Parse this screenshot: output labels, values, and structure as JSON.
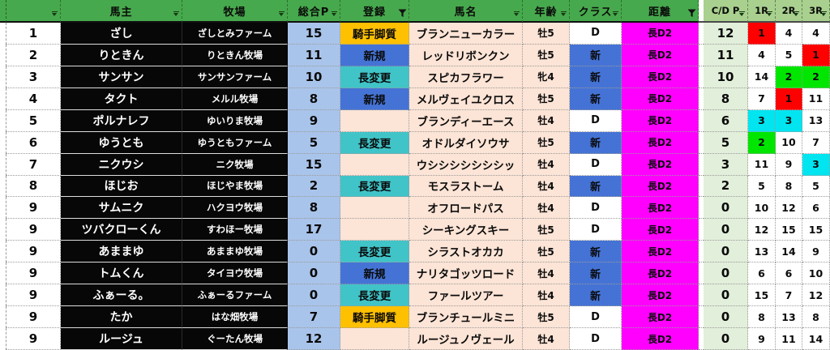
{
  "colors": {
    "header_green": "#47A94D",
    "header_light_green": "#A9D08E",
    "owner_cell_black": "#070707",
    "total_p_blue": "#A9C4EA",
    "cream": "#FCE4D6",
    "entry_gold": "#FFC000",
    "entry_blue": "#4573D5",
    "entry_teal": "#40C4C8",
    "distance_magenta": "#FF00FF",
    "cdp_light_green": "#E2EFDA",
    "rank_red": "#FF0000",
    "rank_green": "#00E600",
    "rank_cyan": "#00E5F0"
  },
  "sheet": {
    "columns": [
      {
        "label": "",
        "filter": "dropdown",
        "theme": "green",
        "name": "row-number"
      },
      {
        "label": "馬主",
        "filter": "dropdown",
        "theme": "green",
        "name": "owner"
      },
      {
        "label": "牧場",
        "filter": "dropdown",
        "theme": "green",
        "name": "farm"
      },
      {
        "label": "総合P",
        "filter": "dropdown",
        "theme": "green",
        "name": "total-p"
      },
      {
        "label": "登録",
        "filter": "funnel",
        "theme": "green",
        "name": "entry"
      },
      {
        "label": "馬名",
        "filter": "dropdown",
        "theme": "green",
        "name": "horse-name"
      },
      {
        "label": "年齢",
        "filter": "dropdown",
        "theme": "green",
        "name": "age"
      },
      {
        "label": "クラス",
        "filter": "dropdown",
        "theme": "green",
        "name": "class"
      },
      {
        "label": "距離",
        "filter": "funnel",
        "theme": "green",
        "name": "distance"
      },
      {
        "label": "",
        "filter": "none",
        "theme": "gap",
        "name": "gap"
      },
      {
        "label": "C/D P",
        "filter": "dropdown",
        "theme": "light",
        "name": "cd-p"
      },
      {
        "label": "1R",
        "filter": "dropdown",
        "theme": "light",
        "name": "r1"
      },
      {
        "label": "2R",
        "filter": "dropdown",
        "theme": "light",
        "name": "r2"
      },
      {
        "label": "3R",
        "filter": "dropdown",
        "theme": "light",
        "name": "r3"
      }
    ],
    "rows": [
      {
        "num": "1",
        "owner": "ざし",
        "farm": "ざしとみファーム",
        "total": "15",
        "entry": "騎手脚質",
        "entry_style": "gold",
        "horse": "ブランニューカラー",
        "age": "牡5",
        "cls": "D",
        "cls_style": "",
        "dist": "長D2",
        "cdp": "12",
        "r1": "1",
        "r1s": "red",
        "r2": "4",
        "r2s": "",
        "r3": "4",
        "r3s": ""
      },
      {
        "num": "2",
        "owner": "りときん",
        "farm": "りときん牧場",
        "total": "11",
        "entry": "新規",
        "entry_style": "blue",
        "horse": "レッドリボンクン",
        "age": "牡5",
        "cls": "新",
        "cls_style": "blue",
        "dist": "長D2",
        "cdp": "11",
        "r1": "4",
        "r1s": "",
        "r2": "5",
        "r2s": "",
        "r3": "1",
        "r3s": "red"
      },
      {
        "num": "3",
        "owner": "サンサン",
        "farm": "サンサンファーム",
        "total": "10",
        "entry": "長変更",
        "entry_style": "teal",
        "horse": "スピカフラワー",
        "age": "牝4",
        "cls": "新",
        "cls_style": "blue",
        "dist": "長D2",
        "cdp": "10",
        "r1": "14",
        "r1s": "",
        "r2": "2",
        "r2s": "green",
        "r3": "2",
        "r3s": "green"
      },
      {
        "num": "4",
        "owner": "タクト",
        "farm": "メルル牧場",
        "total": "8",
        "entry": "新規",
        "entry_style": "blue",
        "horse": "メルヴェイユクロス",
        "age": "牡5",
        "cls": "新",
        "cls_style": "blue",
        "dist": "長D2",
        "cdp": "8",
        "r1": "7",
        "r1s": "",
        "r2": "1",
        "r2s": "red",
        "r3": "11",
        "r3s": ""
      },
      {
        "num": "5",
        "owner": "ポルナレフ",
        "farm": "ゆいりま牧場",
        "total": "9",
        "entry": "",
        "entry_style": "",
        "horse": "ブランディーエース",
        "age": "牡4",
        "cls": "D",
        "cls_style": "",
        "dist": "長D2",
        "cdp": "6",
        "r1": "3",
        "r1s": "cyan",
        "r2": "3",
        "r2s": "cyan",
        "r3": "13",
        "r3s": ""
      },
      {
        "num": "6",
        "owner": "ゆうとも",
        "farm": "ゆうともファーム",
        "total": "5",
        "entry": "長変更",
        "entry_style": "teal",
        "horse": "オドルダイソウサ",
        "age": "牡5",
        "cls": "新",
        "cls_style": "blue",
        "dist": "長D2",
        "cdp": "5",
        "r1": "2",
        "r1s": "green",
        "r2": "10",
        "r2s": "",
        "r3": "7",
        "r3s": ""
      },
      {
        "num": "7",
        "owner": "ニクウシ",
        "farm": "ニク牧場",
        "total": "15",
        "entry": "",
        "entry_style": "",
        "horse": "ウシシシシシシシッ",
        "age": "牡4",
        "cls": "D",
        "cls_style": "",
        "dist": "長D2",
        "cdp": "3",
        "r1": "11",
        "r1s": "",
        "r2": "9",
        "r2s": "",
        "r3": "3",
        "r3s": "cyan"
      },
      {
        "num": "8",
        "owner": "ほじお",
        "farm": "ほじやま牧場",
        "total": "2",
        "entry": "長変更",
        "entry_style": "teal",
        "horse": "モスラストーム",
        "age": "牡4",
        "cls": "新",
        "cls_style": "blue",
        "dist": "長D2",
        "cdp": "2",
        "r1": "5",
        "r1s": "",
        "r2": "8",
        "r2s": "",
        "r3": "5",
        "r3s": ""
      },
      {
        "num": "9",
        "owner": "サムニク",
        "farm": "ハクヨウ牧場",
        "total": "8",
        "entry": "",
        "entry_style": "",
        "horse": "オフロードパス",
        "age": "牡4",
        "cls": "D",
        "cls_style": "",
        "dist": "長D2",
        "cdp": "0",
        "r1": "10",
        "r1s": "",
        "r2": "12",
        "r2s": "",
        "r3": "6",
        "r3s": ""
      },
      {
        "num": "9",
        "owner": "ツバクローくん",
        "farm": "すわほー牧場",
        "total": "17",
        "entry": "",
        "entry_style": "",
        "horse": "シーキングスキー",
        "age": "牡5",
        "cls": "D",
        "cls_style": "",
        "dist": "長D2",
        "cdp": "0",
        "r1": "12",
        "r1s": "",
        "r2": "15",
        "r2s": "",
        "r3": "15",
        "r3s": ""
      },
      {
        "num": "9",
        "owner": "あままゆ",
        "farm": "あままゆ牧場",
        "total": "0",
        "entry": "長変更",
        "entry_style": "teal",
        "horse": "シラストオカカ",
        "age": "牡5",
        "cls": "新",
        "cls_style": "blue",
        "dist": "長D2",
        "cdp": "0",
        "r1": "13",
        "r1s": "",
        "r2": "14",
        "r2s": "",
        "r3": "9",
        "r3s": ""
      },
      {
        "num": "9",
        "owner": "トムくん",
        "farm": "タイヨウ牧場",
        "total": "0",
        "entry": "新規",
        "entry_style": "blue",
        "horse": "ナリタゴッツロード",
        "age": "牡4",
        "cls": "新",
        "cls_style": "blue",
        "dist": "長D2",
        "cdp": "0",
        "r1": "6",
        "r1s": "",
        "r2": "6",
        "r2s": "",
        "r3": "10",
        "r3s": ""
      },
      {
        "num": "9",
        "owner": "ふぁーる。",
        "farm": "ふぁーるファーム",
        "total": "0",
        "entry": "長変更",
        "entry_style": "teal",
        "horse": "ファールツアー",
        "age": "牡4",
        "cls": "新",
        "cls_style": "blue",
        "dist": "長D2",
        "cdp": "0",
        "r1": "15",
        "r1s": "",
        "r2": "7",
        "r2s": "",
        "r3": "12",
        "r3s": ""
      },
      {
        "num": "9",
        "owner": "たか",
        "farm": "はな畑牧場",
        "total": "7",
        "entry": "騎手脚質",
        "entry_style": "gold",
        "horse": "ブランチュールミニ",
        "age": "牡5",
        "cls": "D",
        "cls_style": "",
        "dist": "長D2",
        "cdp": "0",
        "r1": "8",
        "r1s": "",
        "r2": "13",
        "r2s": "",
        "r3": "8",
        "r3s": ""
      },
      {
        "num": "9",
        "owner": "ルージュ",
        "farm": "ぐーたん牧場",
        "total": "12",
        "entry": "",
        "entry_style": "",
        "horse": "ルージュノヴェール",
        "age": "牡4",
        "cls": "D",
        "cls_style": "",
        "dist": "長D2",
        "cdp": "0",
        "r1": "9",
        "r1s": "",
        "r2": "11",
        "r2s": "",
        "r3": "14",
        "r3s": ""
      }
    ]
  }
}
